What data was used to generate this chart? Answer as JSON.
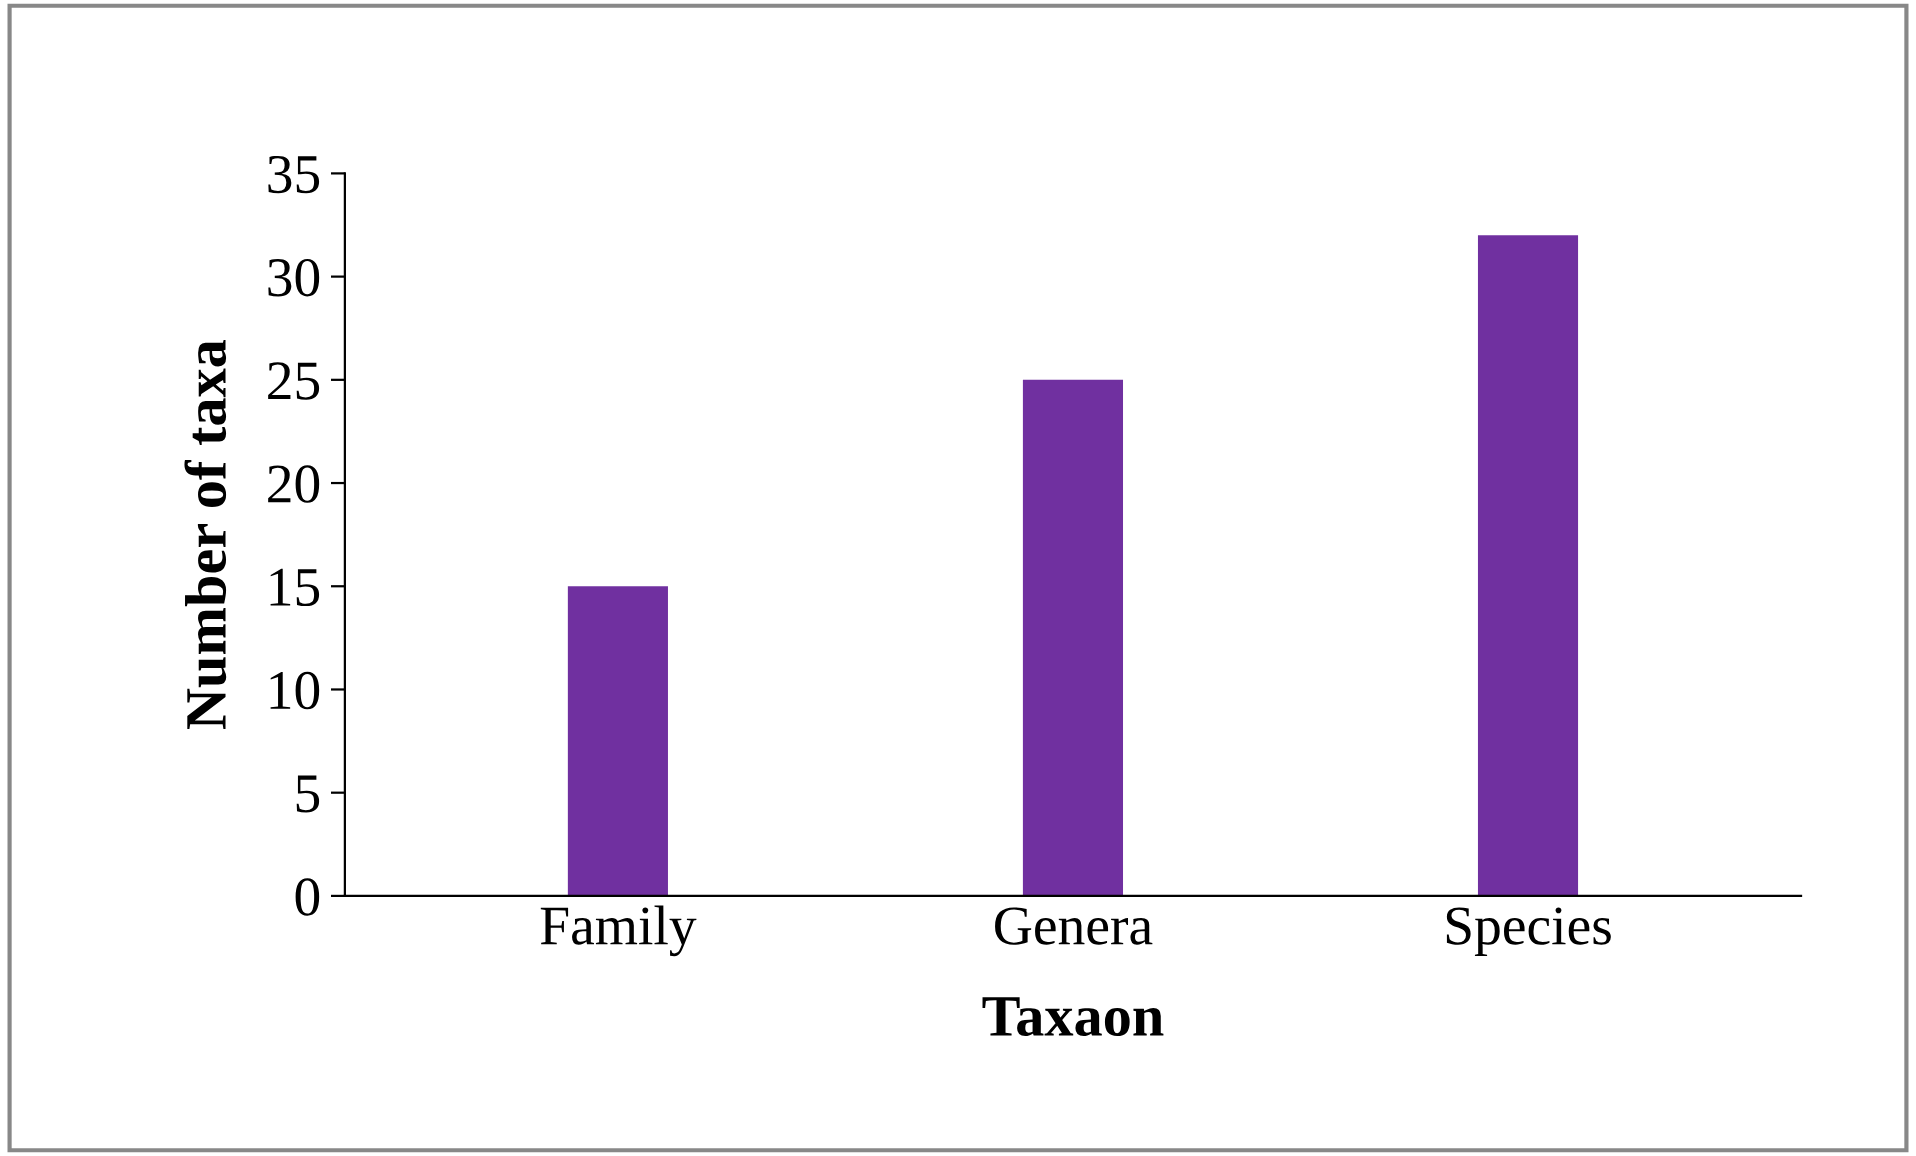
{
  "chart_data": {
    "type": "bar",
    "xlabel": "Taxaon",
    "ylabel": "Number of taxa",
    "categories": [
      "Family",
      "Genera",
      "Species"
    ],
    "values": [
      15,
      25,
      32
    ],
    "color": "#7030a0",
    "ylim": [
      0,
      35
    ],
    "yticks": [
      0,
      5,
      10,
      15,
      20,
      25,
      30,
      35
    ],
    "grid": false
  }
}
